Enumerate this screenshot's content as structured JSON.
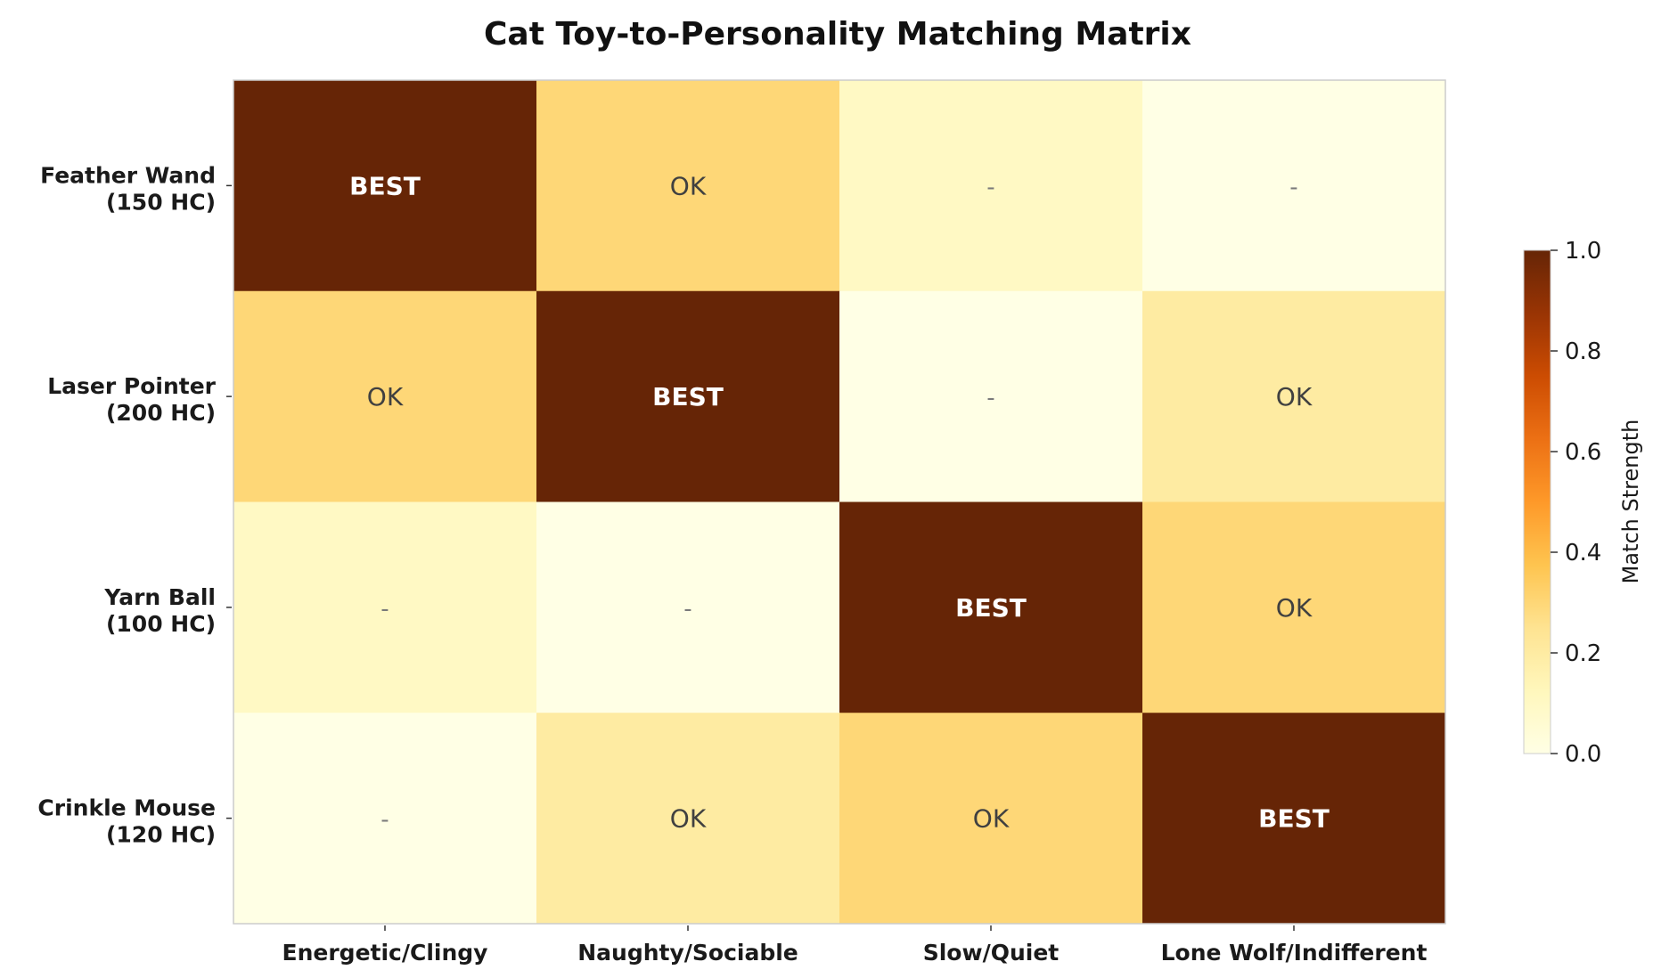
{
  "chart_data": {
    "type": "heatmap",
    "title": "Cat Toy-to-Personality Matching Matrix",
    "rows": [
      {
        "name": "Feather Wand",
        "cost": "(150 HC)"
      },
      {
        "name": "Laser Pointer",
        "cost": "(200 HC)"
      },
      {
        "name": "Yarn Ball",
        "cost": "(100 HC)"
      },
      {
        "name": "Crinkle Mouse",
        "cost": "(120 HC)"
      }
    ],
    "columns": [
      "Energetic/Clingy",
      "Naughty/Sociable",
      "Slow/Quiet",
      "Lone Wolf/Indifferent"
    ],
    "values": [
      [
        1.0,
        0.3,
        0.1,
        0.0
      ],
      [
        0.3,
        1.0,
        0.0,
        0.2
      ],
      [
        0.1,
        0.0,
        1.0,
        0.3
      ],
      [
        0.0,
        0.2,
        0.3,
        1.0
      ]
    ],
    "labels": [
      [
        "BEST",
        "OK",
        "-",
        "-"
      ],
      [
        "OK",
        "BEST",
        "-",
        "OK"
      ],
      [
        "-",
        "-",
        "BEST",
        "OK"
      ],
      [
        "-",
        "OK",
        "OK",
        "BEST"
      ]
    ],
    "colorbar": {
      "label": "Match Strength",
      "range": [
        0.0,
        1.0
      ],
      "ticks": [
        "0.0",
        "0.2",
        "0.4",
        "0.6",
        "0.8",
        "1.0"
      ],
      "colormap": "YlOrBr"
    }
  }
}
